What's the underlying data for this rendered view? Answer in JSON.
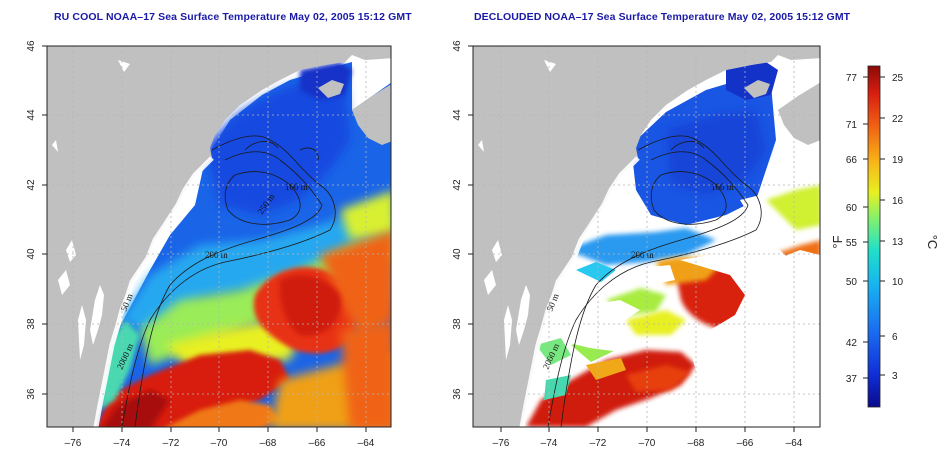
{
  "panels": [
    {
      "id": "left",
      "title": "RU COOL NOAA–17 Sea Surface Temperature May 02, 2005 15:12 GMT",
      "contour_labels": [
        "50 m",
        "2000 m",
        "200 m",
        "100 m",
        "250 m"
      ]
    },
    {
      "id": "right",
      "title": "DECLOUDED NOAA–17 Sea Surface Temperature May 02, 2005 15:12 GMT",
      "contour_labels": [
        "50 m",
        "2000 m",
        "200 m",
        "100 m"
      ]
    }
  ],
  "map_axes": {
    "lon_ticks": [
      "–76",
      "–74",
      "–72",
      "–70",
      "–68",
      "–66",
      "–64"
    ],
    "lat_ticks": [
      "36",
      "38",
      "40",
      "42",
      "44",
      "46"
    ]
  },
  "colorbar": {
    "fahrenheit_ticks": [
      "77",
      "71",
      "66",
      "60",
      "55",
      "50",
      "42",
      "37"
    ],
    "celsius_ticks": [
      "25",
      "22",
      "19",
      "16",
      "13",
      "10",
      "6",
      "3"
    ],
    "fahrenheit_unit": "°F",
    "celsius_unit": "°C",
    "colors": [
      "#0a0a8c",
      "#1030d8",
      "#1a6cf0",
      "#18b4f0",
      "#20e0c8",
      "#80f070",
      "#e8f020",
      "#f8b418",
      "#f06414",
      "#d81e10",
      "#8a0a08"
    ]
  },
  "colors": {
    "land": "#c0c0c0",
    "title": "#1a1aa8",
    "grid": "#b4b4b4"
  }
}
